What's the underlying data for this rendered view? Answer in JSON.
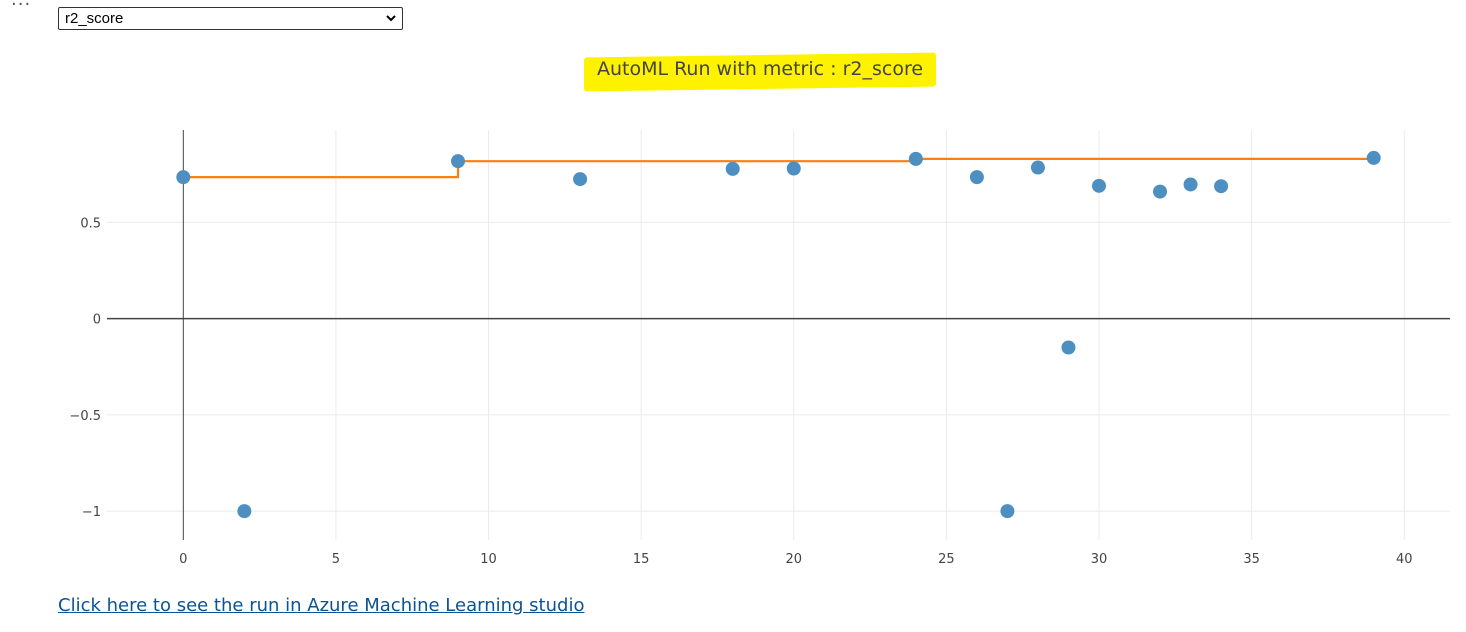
{
  "toolbar": {
    "more_glyph": "···"
  },
  "metric_select": {
    "selected": "r2_score"
  },
  "chart_data": {
    "type": "scatter",
    "title": "AutoML Run with metric : r2_score",
    "xlabel": "",
    "ylabel": "",
    "xlim": [
      -2.5,
      41.5
    ],
    "ylim": [
      -1.15,
      0.98
    ],
    "x_ticks": [
      0,
      5,
      10,
      15,
      20,
      25,
      30,
      35,
      40
    ],
    "x_tick_labels": [
      "0",
      "5",
      "10",
      "15",
      "20",
      "25",
      "30",
      "35",
      "40"
    ],
    "y_ticks": [
      0.5,
      0,
      -0.5,
      -1
    ],
    "y_tick_labels": [
      "0.5",
      "0",
      "−0.5",
      "−1"
    ],
    "grid": true,
    "series": [
      {
        "type": "scatter",
        "color": "#4e8fc1",
        "x": [
          0,
          2,
          9,
          13,
          18,
          20,
          24,
          26,
          27,
          28,
          29,
          30,
          32,
          33,
          34,
          39
        ],
        "y": [
          0.735,
          -1.0,
          0.818,
          0.725,
          0.778,
          0.78,
          0.83,
          0.735,
          -1.0,
          0.785,
          -0.15,
          0.69,
          0.66,
          0.697,
          0.688,
          0.835
        ]
      },
      {
        "type": "step",
        "color": "#ff7f0e",
        "x": [
          0,
          9,
          9,
          24,
          24,
          39
        ],
        "y": [
          0.735,
          0.735,
          0.818,
          0.818,
          0.83,
          0.83
        ]
      }
    ]
  },
  "footer": {
    "link_text": "Click here to see the run in Azure Machine Learning studio"
  }
}
